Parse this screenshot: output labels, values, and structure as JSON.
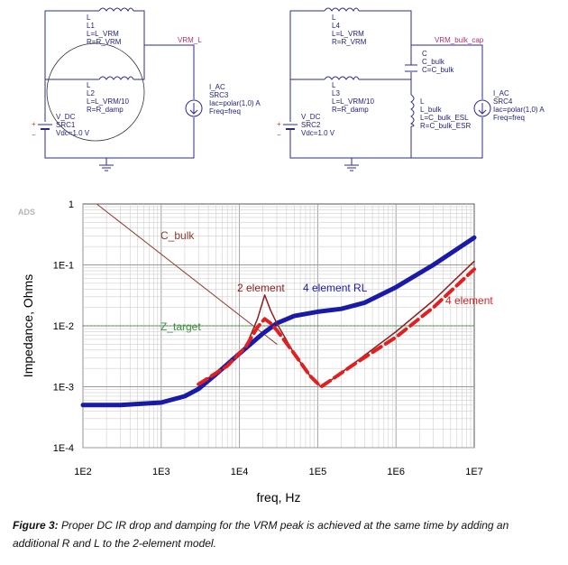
{
  "schematic_left": {
    "L1": [
      "L",
      "L1",
      "L=L_VRM",
      "R=R_VRM"
    ],
    "L2": [
      "L",
      "L2",
      "L=L_VRM/10",
      "R=R_damp"
    ],
    "node": "VRM_L",
    "vsrc": [
      "V_DC",
      "SRC1",
      "Vdc=1.0 V"
    ],
    "isrc": [
      "I_AC",
      "SRC3",
      "Iac=polar(1,0) A",
      "Freq=freq"
    ],
    "plus": "+",
    "minus": "−"
  },
  "schematic_right": {
    "L4": [
      "L",
      "L4",
      "L=L_VRM",
      "R=R_VRM"
    ],
    "L3": [
      "L",
      "L3",
      "L=L_VRM/10",
      "R=R_damp"
    ],
    "C": [
      "C",
      "C_bulk",
      "C=C_bulk"
    ],
    "Lb": [
      "L",
      "L_bulk",
      "L=C_bulk_ESL",
      "R=C_bulk_ESR"
    ],
    "node": "VRM_bulk_cap",
    "vsrc": [
      "V_DC",
      "SRC2",
      "Vdc=1.0 V"
    ],
    "isrc": [
      "I_AC",
      "SRC4",
      "Iac=polar(1,0) A",
      "Freq=freq"
    ],
    "plus": "+",
    "minus": "−"
  },
  "caption": {
    "label": "Figure 3:",
    "text": " Proper DC IR drop and damping for the VRM peak is achieved at the same time by adding an additional R and L to the 2-element model."
  },
  "chart_data": {
    "type": "line",
    "watermark": "ADS",
    "xlabel": "freq, Hz",
    "ylabel": "Impedance, Ohms",
    "xscale": "log",
    "yscale": "log",
    "xlim": [
      100,
      10000000
    ],
    "ylim": [
      0.0001,
      1
    ],
    "x_ticks": [
      "1E2",
      "1E3",
      "1E4",
      "1E5",
      "1E6",
      "1E7"
    ],
    "y_ticks": [
      "1",
      "1E-1",
      "1E-2",
      "1E-3",
      "1E-4"
    ],
    "grid": true,
    "annotations": [
      "C_bulk",
      "2 element",
      "4 element RL",
      "4 element",
      "Z_target"
    ],
    "series": [
      {
        "name": "C_bulk",
        "color": "#8b3a2a",
        "x": [
          150,
          20000,
          30000
        ],
        "y": [
          1.0,
          0.0075,
          0.005
        ]
      },
      {
        "name": "Z_target",
        "color": "#3f8f3f",
        "x": [
          100,
          10000000
        ],
        "y": [
          0.01,
          0.01
        ]
      },
      {
        "name": "4 element RL",
        "color": "#1a1aa8",
        "x": [
          100,
          300,
          1000,
          2000,
          3000,
          5000,
          10000,
          20000,
          30000,
          50000,
          100000,
          200000,
          400000,
          1000000,
          3000000,
          10000000
        ],
        "y": [
          0.0005,
          0.0005,
          0.00055,
          0.0007,
          0.00092,
          0.0016,
          0.0035,
          0.0075,
          0.011,
          0.0145,
          0.017,
          0.019,
          0.024,
          0.043,
          0.1,
          0.28
        ]
      },
      {
        "name": "2 element",
        "color": "#8b2020",
        "x": [
          3000,
          7000,
          12000,
          17000,
          21000,
          25000,
          30000,
          50000,
          80000,
          110000,
          150000,
          300000,
          1000000,
          3000000,
          10000000
        ],
        "y": [
          0.0011,
          0.0022,
          0.0045,
          0.013,
          0.032,
          0.018,
          0.011,
          0.0035,
          0.0015,
          0.001,
          0.0013,
          0.0025,
          0.008,
          0.026,
          0.115
        ]
      },
      {
        "name": "4 element",
        "color": "#e02020",
        "x": [
          3000,
          7000,
          12000,
          17000,
          21000,
          25000,
          30000,
          50000,
          80000,
          110000,
          150000,
          300000,
          1000000,
          3000000,
          10000000
        ],
        "y": [
          0.0011,
          0.0022,
          0.0045,
          0.0095,
          0.013,
          0.011,
          0.0085,
          0.0035,
          0.0015,
          0.001,
          0.0013,
          0.0024,
          0.0065,
          0.02,
          0.085
        ]
      }
    ]
  }
}
